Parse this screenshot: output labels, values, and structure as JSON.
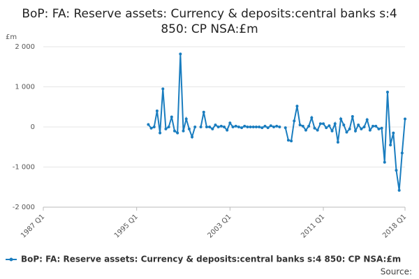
{
  "chart_data": {
    "type": "line",
    "title": "BoP: FA: Reserve assets: Currency & deposits:central banks s:4 850: CP NSA:£m",
    "y_label": "£m",
    "source": "Source:",
    "categories": [
      "1987 Q1",
      null,
      null,
      null,
      null,
      null,
      null,
      null,
      null,
      null,
      null,
      null,
      null,
      null,
      null,
      null,
      null,
      null,
      null,
      null,
      null,
      null,
      null,
      null,
      null,
      null,
      null,
      null,
      null,
      null,
      null,
      null,
      "1995 Q1",
      null,
      null,
      null,
      null,
      null,
      null,
      null,
      null,
      null,
      null,
      null,
      null,
      null,
      null,
      null,
      null,
      null,
      null,
      null,
      null,
      null,
      null,
      null,
      null,
      null,
      null,
      null,
      null,
      null,
      null,
      null,
      "2003 Q1",
      null,
      null,
      null,
      null,
      null,
      null,
      null,
      null,
      null,
      null,
      null,
      null,
      null,
      null,
      null,
      null,
      null,
      null,
      null,
      null,
      null,
      null,
      null,
      null,
      null,
      null,
      null,
      null,
      null,
      null,
      null,
      "2011 Q1",
      null,
      null,
      null,
      null,
      null,
      null,
      null,
      null,
      null,
      null,
      null,
      null,
      null,
      null,
      null,
      null,
      null,
      null,
      null,
      null,
      null,
      null,
      null,
      null,
      null,
      null,
      null,
      "2018 Q1"
    ],
    "series": [
      {
        "name": "BoP: FA: Reserve assets: Currency & deposits:central banks s:4 850: CP NSA:£m",
        "color": "#1a7dbf",
        "values": [
          null,
          null,
          null,
          null,
          null,
          null,
          null,
          null,
          null,
          null,
          null,
          null,
          null,
          null,
          null,
          null,
          null,
          null,
          null,
          null,
          null,
          null,
          null,
          null,
          null,
          null,
          null,
          null,
          null,
          null,
          null,
          null,
          null,
          null,
          null,
          null,
          60,
          -30,
          0,
          400,
          -150,
          950,
          -50,
          0,
          250,
          -100,
          -150,
          1820,
          -100,
          200,
          -50,
          -250,
          0,
          null,
          0,
          370,
          0,
          0,
          -50,
          50,
          0,
          20,
          0,
          -80,
          100,
          0,
          20,
          0,
          -20,
          20,
          0,
          0,
          0,
          0,
          0,
          -20,
          20,
          -20,
          30,
          0,
          20,
          0,
          null,
          -20,
          -330,
          -350,
          150,
          520,
          50,
          20,
          -80,
          20,
          230,
          -30,
          -80,
          80,
          80,
          -20,
          30,
          -100,
          80,
          -380,
          200,
          50,
          -130,
          -50,
          260,
          -100,
          50,
          -50,
          0,
          180,
          -80,
          20,
          20,
          -50,
          -30,
          -880,
          870,
          -450,
          -150,
          -1080,
          -1580,
          -650,
          200
        ]
      }
    ],
    "ylim": [
      -2000,
      2000
    ],
    "yticks": [
      {
        "value": -2000,
        "label": "-2 000"
      },
      {
        "value": -1000,
        "label": "-1 000"
      },
      0,
      {
        "value": 1000,
        "label": "1 000"
      },
      {
        "value": 2000,
        "label": "2 000"
      }
    ],
    "grid": true,
    "legend": "bottom"
  }
}
